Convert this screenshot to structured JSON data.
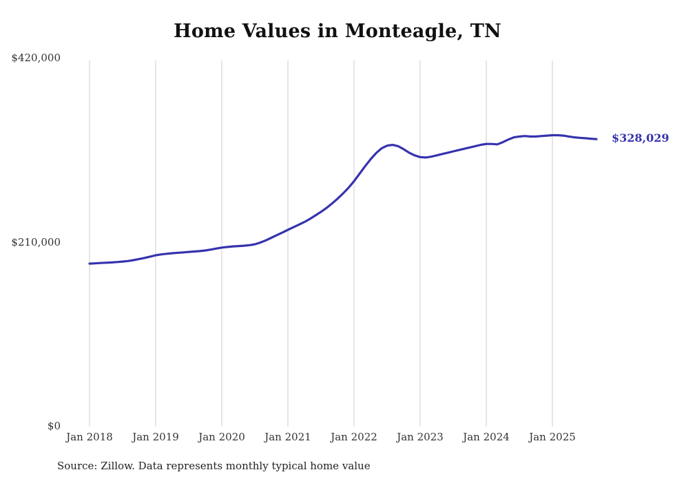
{
  "chart_data": {
    "type": "line",
    "title": "Home Values in Monteagle, TN",
    "source": "Source: Zillow. Data represents monthly typical home value",
    "end_label": "$328,029",
    "end_value": 328029,
    "line_color": "#3632ae",
    "grid_color": "#cccccc",
    "axis_text_color": "#333333",
    "ylim": [
      0,
      420000
    ],
    "y_ticks": [
      {
        "label": "$420,000",
        "value": 420000
      },
      {
        "label": "$210,000",
        "value": 210000
      },
      {
        "label": "$0",
        "value": 0
      }
    ],
    "x_tick_labels": [
      "Jan 2018",
      "Jan 2019",
      "Jan 2020",
      "Jan 2021",
      "Jan 2022",
      "Jan 2023",
      "Jan 2024",
      "Jan 2025"
    ],
    "x_unit": "month",
    "start_month": "2018-01",
    "end_month": "2025-09",
    "legend": "none",
    "grid": "vertical-only",
    "values": [
      186000,
      186300,
      186700,
      187000,
      187300,
      187800,
      188300,
      189000,
      190000,
      191200,
      192500,
      194000,
      195500,
      196500,
      197200,
      197800,
      198300,
      198800,
      199300,
      199800,
      200300,
      201000,
      202000,
      203200,
      204300,
      205000,
      205600,
      206000,
      206400,
      207000,
      208000,
      210000,
      212500,
      215500,
      218500,
      221500,
      224500,
      227500,
      230500,
      233500,
      237000,
      241000,
      245000,
      249500,
      254500,
      260000,
      266000,
      272500,
      280000,
      288500,
      297000,
      305000,
      312000,
      317500,
      320500,
      321500,
      320000,
      316500,
      312500,
      309500,
      307500,
      307000,
      308000,
      309500,
      311000,
      312500,
      314000,
      315500,
      317000,
      318500,
      320000,
      321500,
      322500,
      322500,
      322000,
      324500,
      327500,
      330000,
      331000,
      331500,
      331000,
      331000,
      331500,
      332000,
      332500,
      332500,
      332000,
      331000,
      330000,
      329500,
      329000,
      328500,
      328029
    ]
  }
}
